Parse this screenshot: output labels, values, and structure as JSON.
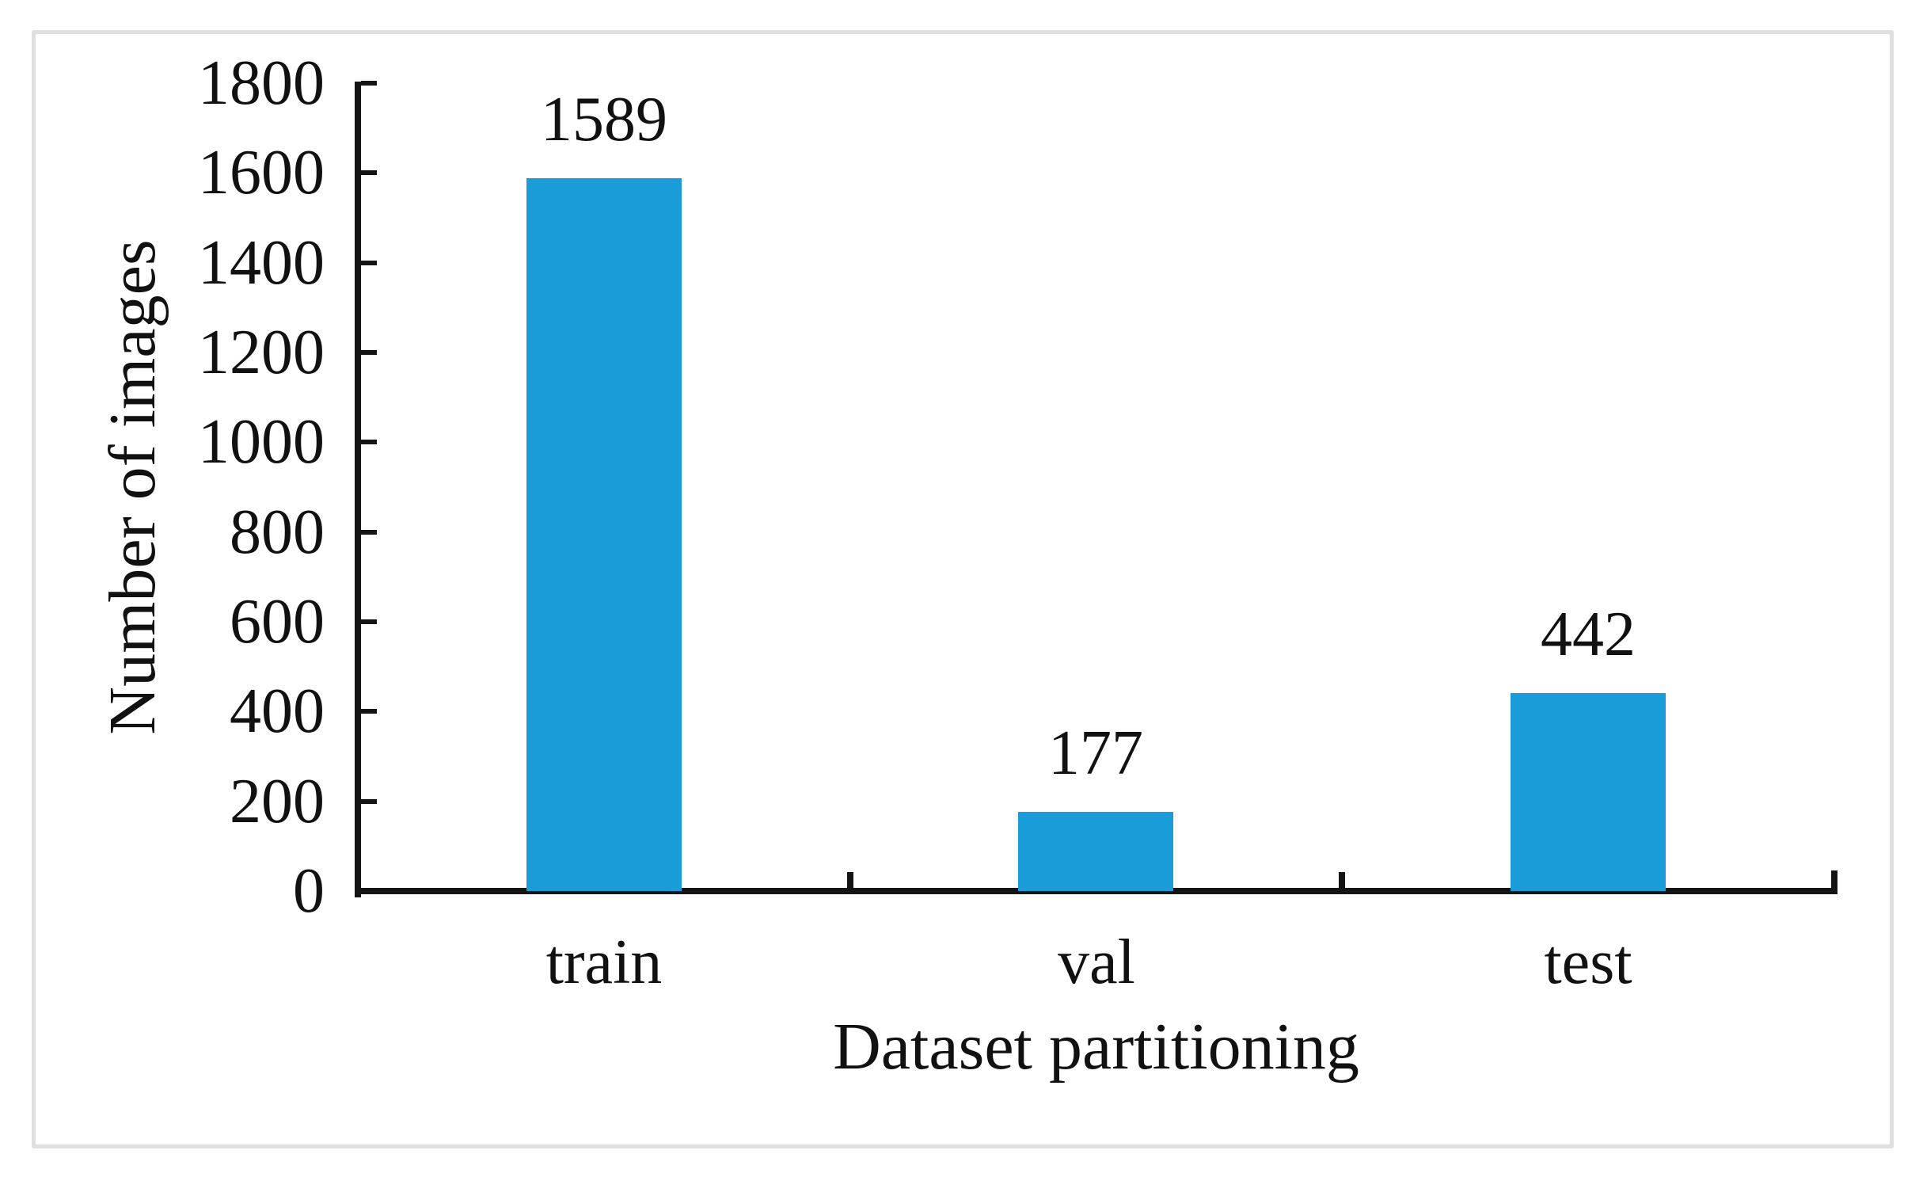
{
  "figure": {
    "background": "#ffffff",
    "frame_color": "#e0e0e0"
  },
  "chart_data": {
    "type": "bar",
    "title": "",
    "categories": [
      "train",
      "val",
      "test"
    ],
    "values": [
      1589,
      177,
      442
    ],
    "data_labels": [
      "1589",
      "177",
      "442"
    ],
    "xlabel": "Dataset partitioning",
    "ylabel": "Number of images",
    "ylim": [
      0,
      1800
    ],
    "yticks": [
      0,
      200,
      400,
      600,
      800,
      1000,
      1200,
      1400,
      1600,
      1800
    ],
    "bar_color": "#199cd8",
    "axis_color": "#141414",
    "text_color": "#111111",
    "grid": "off",
    "legend": "none",
    "tick_style": "inside"
  }
}
